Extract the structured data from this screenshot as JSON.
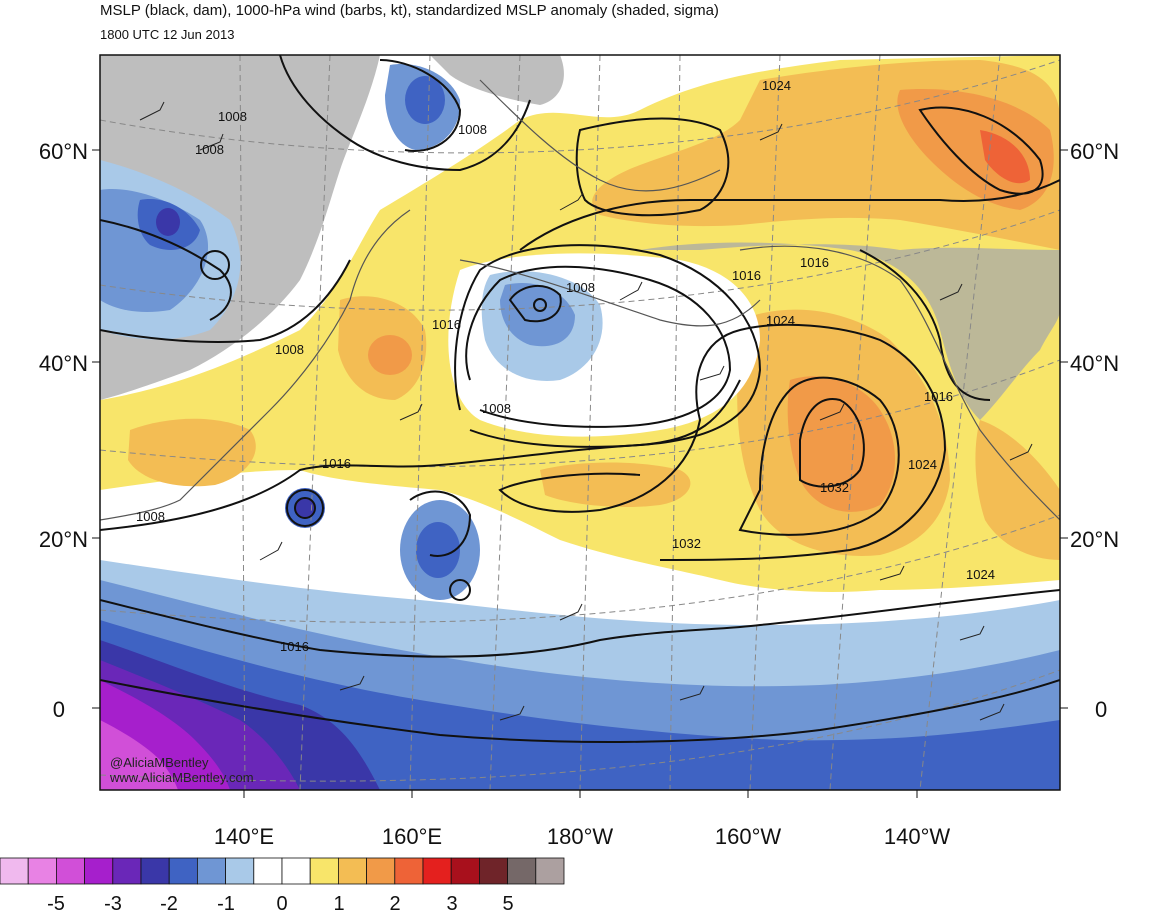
{
  "header": {
    "title": "MSLP (black, dam), 1000-hPa wind (barbs, kt), standardized MSLP anomaly (shaded, sigma)",
    "valid_time": "1800 UTC 12 Jun 2013"
  },
  "map": {
    "lat_labels": [
      "60°N",
      "40°N",
      "20°N",
      "0"
    ],
    "lon_labels": [
      "140°E",
      "160°E",
      "180°W",
      "160°W",
      "140°W"
    ],
    "isobar_labels": [
      "1008",
      "1008",
      "1008",
      "1008",
      "1008",
      "1008",
      "1008",
      "1016",
      "1016",
      "1016",
      "1016",
      "1016",
      "1016",
      "1024",
      "1024",
      "1024",
      "1024",
      "1032"
    ],
    "credit_lines": [
      "@AliciaMBentley",
      "www.AliciaMBentley.com"
    ]
  },
  "colorbar": {
    "labels": [
      "-5",
      "-3",
      "-2",
      "-1",
      "0",
      "1",
      "2",
      "3",
      "5"
    ],
    "colors": [
      "#f0b9ee",
      "#e882e4",
      "#d14fd8",
      "#a61fcc",
      "#6a27b8",
      "#3a37a8",
      "#3f63c3",
      "#6f96d4",
      "#a9c9e8",
      "#ffffff",
      "#ffffff",
      "#f8e56a",
      "#f3bd54",
      "#f19a48",
      "#ee6337",
      "#e4201e",
      "#a8101c",
      "#6f2429",
      "#756868",
      "#aca0a0"
    ]
  }
}
